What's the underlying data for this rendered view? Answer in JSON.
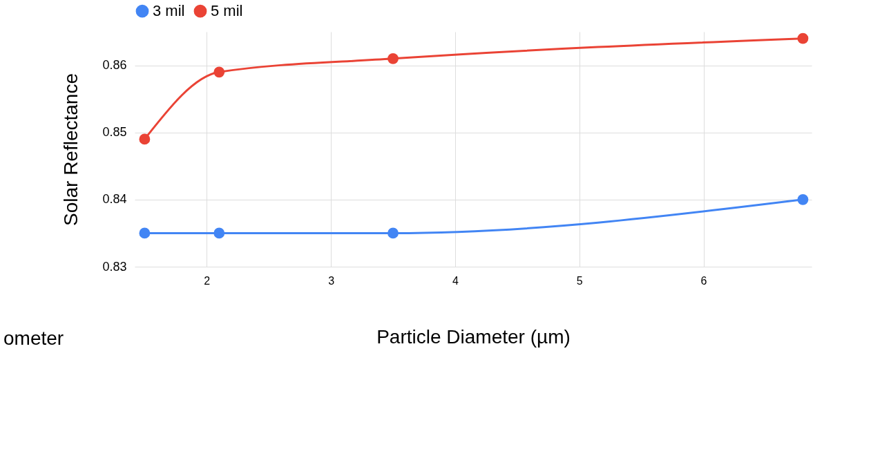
{
  "chart_data": {
    "type": "line",
    "xlabel": "Particle Diameter (µm)",
    "ylabel": "Solar Reflectance",
    "x": [
      1.5,
      2.1,
      3.5,
      6.8
    ],
    "series": [
      {
        "name": "3 mil",
        "color": "#4285f4",
        "values": [
          0.835,
          0.835,
          0.835,
          0.84
        ]
      },
      {
        "name": "5 mil",
        "color": "#ea4335",
        "values": [
          0.849,
          0.859,
          0.861,
          0.864
        ]
      }
    ],
    "xlim": [
      1.42,
      6.87
    ],
    "xticks": [
      2,
      3,
      4,
      5,
      6
    ],
    "ylim": [
      0.83,
      0.865
    ],
    "yticks": [
      0.83,
      0.84,
      0.85,
      0.86
    ],
    "grid": true,
    "legend": "top",
    "marker": "circle",
    "line_style": "solid",
    "annotations": [
      "ometer"
    ]
  }
}
